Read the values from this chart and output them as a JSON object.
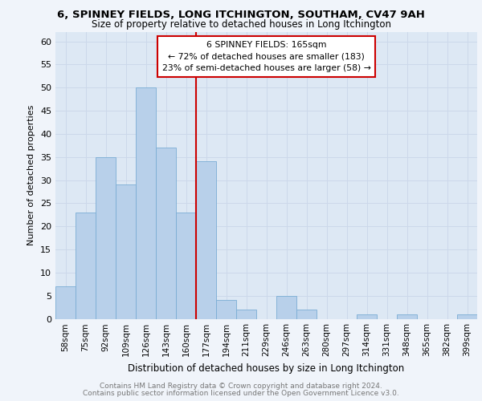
{
  "title1": "6, SPINNEY FIELDS, LONG ITCHINGTON, SOUTHAM, CV47 9AH",
  "title2": "Size of property relative to detached houses in Long Itchington",
  "xlabel": "Distribution of detached houses by size in Long Itchington",
  "ylabel": "Number of detached properties",
  "footnote1": "Contains HM Land Registry data © Crown copyright and database right 2024.",
  "footnote2": "Contains public sector information licensed under the Open Government Licence v3.0.",
  "bar_labels": [
    "58sqm",
    "75sqm",
    "92sqm",
    "109sqm",
    "126sqm",
    "143sqm",
    "160sqm",
    "177sqm",
    "194sqm",
    "211sqm",
    "229sqm",
    "246sqm",
    "263sqm",
    "280sqm",
    "297sqm",
    "314sqm",
    "331sqm",
    "348sqm",
    "365sqm",
    "382sqm",
    "399sqm"
  ],
  "bar_values": [
    7,
    23,
    35,
    29,
    50,
    37,
    23,
    34,
    4,
    2,
    0,
    5,
    2,
    0,
    0,
    1,
    0,
    1,
    0,
    0,
    1
  ],
  "bar_color": "#b8d0ea",
  "bar_edge_color": "#7aadd4",
  "annotation_box_text": "6 SPINNEY FIELDS: 165sqm\n← 72% of detached houses are smaller (183)\n23% of semi-detached houses are larger (58) →",
  "annotation_box_color": "#cc0000",
  "vline_x_index": 6.5,
  "vline_color": "#cc0000",
  "grid_color": "#ccd8ea",
  "bg_color": "#dde8f4",
  "fig_bg_color": "#f0f4fa",
  "ylim": [
    0,
    62
  ],
  "yticks": [
    0,
    5,
    10,
    15,
    20,
    25,
    30,
    35,
    40,
    45,
    50,
    55,
    60
  ],
  "title1_fontsize": 9.5,
  "title2_fontsize": 8.5,
  "ylabel_fontsize": 8,
  "xlabel_fontsize": 8.5,
  "footnote_fontsize": 6.5,
  "tick_fontsize": 7.5,
  "ytick_fontsize": 8
}
